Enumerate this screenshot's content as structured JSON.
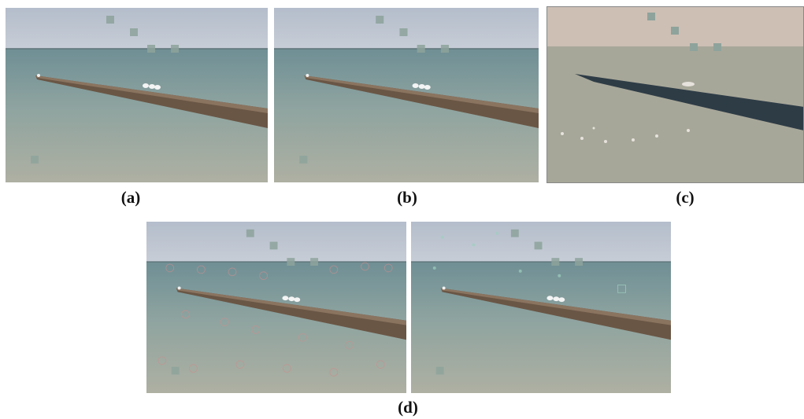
{
  "captions": {
    "a": "(a)",
    "b": "(b)",
    "c": "(c)",
    "d": "(d)"
  }
}
